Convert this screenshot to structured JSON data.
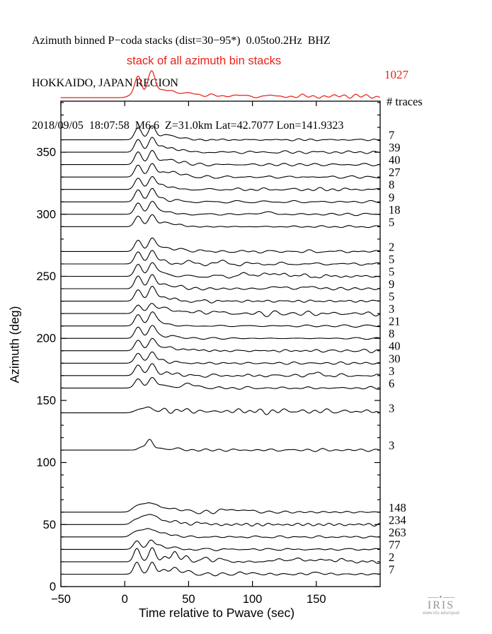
{
  "title": {
    "line1": "Azimuth binned P−coda stacks (dist=30−95*)  0.05to0.2Hz  BHZ",
    "line2": "HOKKAIDO, JAPAN REGION",
    "line3": "2018/09/05  18:07:58  M6.6  Z=31.0km Lat=42.7077 Lon=141.9323"
  },
  "stack": {
    "label": "stack of all azimuth bin stacks",
    "total": "1027"
  },
  "traces_header": "# traces",
  "colors": {
    "stack_red": "#e8231a",
    "trace_black": "#000000",
    "logo_gray": "#97979a"
  },
  "logo": {
    "name": "IRIS",
    "url": "www.iris.edu/spud",
    "star_icon": "✦"
  },
  "chart_data": {
    "type": "line",
    "title": "Azimuth binned P−coda stacks (dist=30−95*)  0.05to0.2Hz  BHZ",
    "xlabel": "Time relative to Pwave (sec)",
    "ylabel": "Azimuth (deg)",
    "x_range": [
      -50,
      200
    ],
    "y_range": [
      0,
      391
    ],
    "x_ticks": [
      -50,
      0,
      50,
      100,
      150
    ],
    "x_tick_labels": [
      "−50",
      "0",
      "50",
      "100",
      "150"
    ],
    "y_ticks": [
      0,
      50,
      100,
      150,
      200,
      250,
      300,
      350
    ],
    "y_minor_step": 10,
    "grid": false,
    "legend": "none",
    "peak_times_sec": [
      10.5,
      21.5
    ],
    "stack_trace": {
      "label": "stack of all azimuth bin stacks",
      "total_traces": 1027,
      "baseline_y": 138,
      "coda_amp": 1.5,
      "seed": 200,
      "peaks": [
        [
          5,
          3,
          3
        ],
        [
          10.5,
          30,
          2.6
        ],
        [
          21,
          38,
          3.0
        ],
        [
          30,
          12,
          3
        ],
        [
          38,
          9,
          3
        ],
        [
          47,
          7,
          3.5
        ],
        [
          56,
          5,
          4
        ],
        [
          70,
          4,
          5
        ],
        [
          90,
          4,
          6
        ],
        [
          115,
          3.5,
          6
        ],
        [
          140,
          3,
          6
        ],
        [
          165,
          3,
          6
        ],
        [
          185,
          3,
          6
        ]
      ]
    },
    "series": [
      {
        "azimuth": 360,
        "n_traces": 7,
        "coda_amp": 1.2,
        "seed": 3,
        "peaks": [
          [
            10.5,
            17,
            2.7
          ],
          [
            21.5,
            20,
            2.8
          ],
          [
            31,
            7,
            3
          ],
          [
            38,
            5,
            3
          ],
          [
            46,
            3,
            3
          ]
        ]
      },
      {
        "azimuth": 350,
        "n_traces": 39,
        "coda_amp": 1.5,
        "seed": 7,
        "peaks": [
          [
            10.5,
            18,
            2.7
          ],
          [
            21.5,
            21,
            2.8
          ],
          [
            30,
            8,
            3
          ],
          [
            37,
            5,
            3
          ],
          [
            45,
            4,
            3
          ]
        ]
      },
      {
        "azimuth": 340,
        "n_traces": 40,
        "coda_amp": 1.3,
        "seed": 11,
        "peaks": [
          [
            10.5,
            18,
            2.7
          ],
          [
            21.5,
            20,
            2.8
          ],
          [
            30,
            7,
            3
          ],
          [
            38,
            6,
            3
          ],
          [
            47,
            4,
            3
          ]
        ]
      },
      {
        "azimuth": 330,
        "n_traces": 27,
        "coda_amp": 1.3,
        "seed": 15,
        "peaks": [
          [
            10.5,
            17,
            2.7
          ],
          [
            21.5,
            19,
            2.8
          ],
          [
            30,
            7,
            3
          ],
          [
            38,
            7,
            3
          ],
          [
            46,
            4,
            3.5
          ]
        ]
      },
      {
        "azimuth": 320,
        "n_traces": 8,
        "coda_amp": 1.5,
        "seed": 19,
        "peaks": [
          [
            10.5,
            16,
            2.7
          ],
          [
            21.5,
            18,
            2.8
          ],
          [
            29,
            6,
            3
          ],
          [
            36,
            4,
            3
          ]
        ]
      },
      {
        "azimuth": 310,
        "n_traces": 9,
        "coda_amp": 1.3,
        "seed": 23,
        "peaks": [
          [
            10.5,
            17,
            2.7
          ],
          [
            21.5,
            19,
            2.8
          ],
          [
            30,
            5,
            3
          ],
          [
            40,
            3,
            3
          ]
        ]
      },
      {
        "azimuth": 300,
        "n_traces": 18,
        "coda_amp": 1.4,
        "seed": 27,
        "peaks": [
          [
            10.5,
            16,
            2.7
          ],
          [
            21.5,
            18,
            2.8
          ],
          [
            28,
            5,
            3
          ],
          [
            36,
            3,
            3
          ],
          [
            110,
            3,
            5
          ]
        ]
      },
      {
        "azimuth": 290,
        "n_traces": 5,
        "coda_amp": 1.2,
        "seed": 31,
        "peaks": [
          [
            10.5,
            15,
            2.7
          ],
          [
            21.5,
            17,
            2.8
          ],
          [
            30,
            5,
            3
          ],
          [
            36,
            4,
            3
          ],
          [
            44,
            3,
            3
          ]
        ]
      },
      {
        "azimuth": 270,
        "n_traces": 2,
        "coda_amp": 1.5,
        "seed": 35,
        "peaks": [
          [
            10.5,
            16,
            2.7
          ],
          [
            21.5,
            19,
            2.8
          ],
          [
            29,
            6,
            3
          ],
          [
            35,
            4,
            3
          ],
          [
            43,
            3,
            3
          ],
          [
            55,
            2,
            4
          ]
        ]
      },
      {
        "azimuth": 260,
        "n_traces": 5,
        "coda_amp": 1.6,
        "seed": 39,
        "peaks": [
          [
            10.5,
            17,
            2.7
          ],
          [
            21.5,
            19,
            2.8
          ],
          [
            30,
            5,
            3
          ],
          [
            48,
            3,
            4
          ],
          [
            75,
            3,
            4
          ]
        ]
      },
      {
        "azimuth": 250,
        "n_traces": 5,
        "coda_amp": 1.6,
        "seed": 43,
        "peaks": [
          [
            10.5,
            17,
            2.7
          ],
          [
            21.5,
            19,
            2.8
          ],
          [
            28,
            5,
            3
          ],
          [
            36,
            3,
            3
          ],
          [
            95,
            3,
            5
          ],
          [
            112,
            4,
            5
          ],
          [
            128,
            3,
            5
          ]
        ]
      },
      {
        "azimuth": 240,
        "n_traces": 9,
        "coda_amp": 1.5,
        "seed": 47,
        "peaks": [
          [
            10.5,
            18,
            2.7
          ],
          [
            21.5,
            20,
            2.8
          ],
          [
            30,
            6,
            3
          ],
          [
            37,
            4,
            3
          ],
          [
            45,
            3,
            3
          ],
          [
            120,
            3,
            5
          ],
          [
            145,
            3,
            5
          ]
        ]
      },
      {
        "azimuth": 230,
        "n_traces": 5,
        "coda_amp": 1.5,
        "seed": 51,
        "peaks": [
          [
            10.5,
            16,
            2.7
          ],
          [
            21.5,
            21,
            2.8
          ],
          [
            30,
            7,
            3
          ],
          [
            38,
            3,
            3
          ]
        ]
      },
      {
        "azimuth": 220,
        "n_traces": 3,
        "coda_amp": 3.0,
        "seed": 55,
        "peaks": [
          [
            10.5,
            12,
            2.7
          ],
          [
            21,
            14,
            2.8
          ],
          [
            28,
            7,
            3
          ],
          [
            34,
            5,
            3
          ],
          [
            42,
            4,
            3
          ],
          [
            52,
            3,
            4
          ],
          [
            70,
            3,
            5
          ]
        ]
      },
      {
        "azimuth": 210,
        "n_traces": 21,
        "coda_amp": 1.3,
        "seed": 59,
        "peaks": [
          [
            10.5,
            16,
            2.7
          ],
          [
            21.5,
            19,
            2.8
          ],
          [
            27,
            5,
            3
          ],
          [
            35,
            3,
            3
          ]
        ]
      },
      {
        "azimuth": 200,
        "n_traces": 8,
        "coda_amp": 1.2,
        "seed": 63,
        "peaks": [
          [
            10.5,
            16,
            2.7
          ],
          [
            21.5,
            18,
            2.8
          ],
          [
            28,
            4,
            3
          ],
          [
            36,
            3,
            3
          ],
          [
            44,
            2,
            3
          ]
        ]
      },
      {
        "azimuth": 190,
        "n_traces": 40,
        "coda_amp": 1.5,
        "seed": 67,
        "peaks": [
          [
            10.5,
            15,
            2.7
          ],
          [
            21.5,
            17,
            2.8
          ],
          [
            28,
            5,
            3
          ],
          [
            35,
            4,
            3
          ],
          [
            42,
            3,
            3
          ],
          [
            55,
            2,
            4
          ]
        ]
      },
      {
        "azimuth": 180,
        "n_traces": 30,
        "coda_amp": 1.3,
        "seed": 71,
        "peaks": [
          [
            10.5,
            14,
            2.7
          ],
          [
            21.5,
            16,
            2.8
          ],
          [
            30,
            4,
            3
          ],
          [
            40,
            2,
            3
          ]
        ]
      },
      {
        "azimuth": 170,
        "n_traces": 3,
        "coda_amp": 1.6,
        "seed": 75,
        "peaks": [
          [
            10.5,
            15,
            2.7
          ],
          [
            21.5,
            17,
            2.8
          ],
          [
            32,
            4,
            3
          ],
          [
            40,
            3,
            3
          ],
          [
            150,
            3,
            5
          ]
        ]
      },
      {
        "azimuth": 160,
        "n_traces": 6,
        "coda_amp": 1.6,
        "seed": 79,
        "peaks": [
          [
            10.5,
            13,
            2.7
          ],
          [
            21.5,
            15,
            2.8
          ],
          [
            30,
            4,
            3
          ],
          [
            40,
            3,
            3
          ],
          [
            50,
            6,
            3
          ],
          [
            58,
            3,
            3
          ]
        ]
      },
      {
        "azimuth": 140,
        "n_traces": 3,
        "coda_amp": 2.6,
        "seed": 83,
        "peaks": [
          [
            12,
            5,
            4
          ],
          [
            19,
            7,
            3
          ],
          [
            30,
            4,
            4
          ],
          [
            45,
            5,
            4
          ],
          [
            60,
            3,
            4
          ],
          [
            75,
            3,
            4
          ],
          [
            90,
            4,
            4
          ],
          [
            105,
            3,
            4
          ],
          [
            125,
            4,
            5
          ],
          [
            142,
            3,
            4
          ],
          [
            158,
            4,
            4
          ],
          [
            175,
            3,
            4
          ],
          [
            190,
            3,
            4
          ]
        ]
      },
      {
        "azimuth": 110,
        "n_traces": 3,
        "coda_amp": 1.4,
        "seed": 87,
        "peaks": [
          [
            13,
            4,
            2.5
          ],
          [
            19.5,
            15,
            2.5
          ],
          [
            28,
            3,
            3
          ],
          [
            40,
            2,
            4
          ]
        ]
      },
      {
        "azimuth": 60,
        "n_traces": 148,
        "coda_amp": 1.4,
        "seed": 91,
        "peaks": [
          [
            8,
            6,
            3
          ],
          [
            13,
            8,
            3
          ],
          [
            19,
            11,
            3.2
          ],
          [
            25,
            8,
            3
          ],
          [
            32,
            6,
            3
          ],
          [
            40,
            4,
            3
          ],
          [
            47,
            3,
            3
          ],
          [
            80,
            4,
            5
          ],
          [
            95,
            3,
            5
          ]
        ]
      },
      {
        "azimuth": 50,
        "n_traces": 234,
        "coda_amp": 1.3,
        "seed": 95,
        "peaks": [
          [
            8,
            6,
            3
          ],
          [
            14,
            9,
            3
          ],
          [
            20,
            12,
            3.2
          ],
          [
            26,
            8,
            3
          ],
          [
            34,
            5,
            3
          ],
          [
            42,
            4,
            3
          ],
          [
            58,
            3,
            4
          ]
        ]
      },
      {
        "azimuth": 40,
        "n_traces": 263,
        "coda_amp": 1.1,
        "seed": 99,
        "peaks": [
          [
            7,
            5,
            3
          ],
          [
            12,
            7,
            3
          ],
          [
            18,
            10,
            3
          ],
          [
            24,
            7,
            3
          ],
          [
            31,
            5,
            3
          ],
          [
            40,
            3,
            3
          ]
        ]
      },
      {
        "azimuth": 30,
        "n_traces": 77,
        "coda_amp": 1.3,
        "seed": 103,
        "peaks": [
          [
            9.5,
            12,
            2.6
          ],
          [
            20.5,
            13,
            2.7
          ],
          [
            28,
            6,
            3
          ],
          [
            38,
            3,
            3
          ]
        ]
      },
      {
        "azimuth": 20,
        "n_traces": 2,
        "coda_amp": 2.0,
        "seed": 107,
        "peaks": [
          [
            9.5,
            19,
            2.4
          ],
          [
            21.5,
            20,
            2.5
          ],
          [
            31,
            6,
            2.5
          ],
          [
            39,
            14,
            2.6
          ],
          [
            48,
            6,
            3
          ],
          [
            62,
            4,
            4
          ],
          [
            74,
            4,
            4
          ],
          [
            120,
            3,
            5
          ],
          [
            135,
            4,
            5
          ],
          [
            152,
            3,
            5
          ],
          [
            168,
            3,
            5
          ]
        ]
      },
      {
        "azimuth": 10,
        "n_traces": 7,
        "coda_amp": 1.5,
        "seed": 111,
        "peaks": [
          [
            9.5,
            17,
            2.4
          ],
          [
            21.5,
            17,
            2.5
          ],
          [
            31,
            7,
            2.5
          ],
          [
            39,
            9,
            2.6
          ],
          [
            48,
            5,
            3
          ],
          [
            95,
            2,
            5
          ],
          [
            150,
            2,
            5
          ]
        ]
      }
    ]
  }
}
